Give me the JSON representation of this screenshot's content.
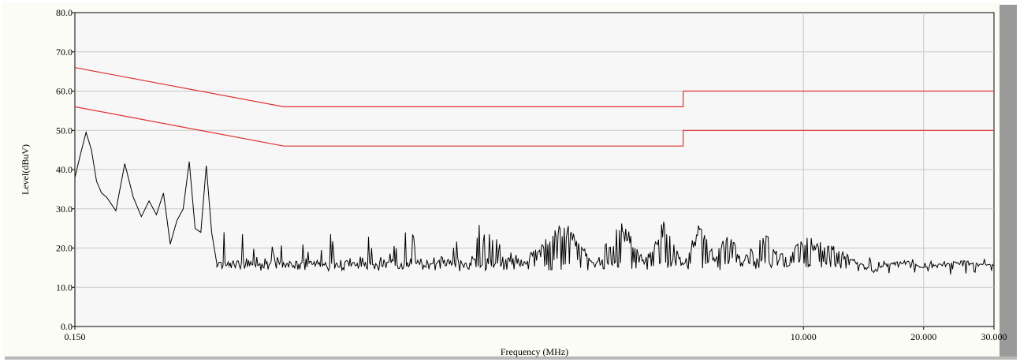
{
  "chart_data": {
    "type": "line",
    "title": "",
    "xlabel": "Frequency (MHz)",
    "ylabel": "Level(dBuV)",
    "xscale": "log",
    "xlim": [
      0.15,
      30
    ],
    "ylim": [
      0,
      80
    ],
    "x_ticks": [
      {
        "value": 0.15,
        "label": "0.150"
      },
      {
        "value": 10,
        "label": "10.000"
      },
      {
        "value": 20,
        "label": "20.000"
      },
      {
        "value": 30,
        "label": "30.000"
      }
    ],
    "y_ticks": [
      {
        "value": 0,
        "label": "0.0"
      },
      {
        "value": 10,
        "label": "10.0"
      },
      {
        "value": 20,
        "label": "20.0"
      },
      {
        "value": 30,
        "label": "30.0"
      },
      {
        "value": 40,
        "label": "40.0"
      },
      {
        "value": 50,
        "label": "50.0"
      },
      {
        "value": 60,
        "label": "60.0"
      },
      {
        "value": 70,
        "label": "70.0"
      },
      {
        "value": 80,
        "label": "80.0"
      }
    ],
    "grid": {
      "horizontal": true,
      "vertical": true
    },
    "colors": {
      "limit_lines": "#e03030",
      "trace": "#000000",
      "grid": "#c8c8c8",
      "background": "#f7f7f7",
      "frame_shadow": "#9a9a9a"
    },
    "series": [
      {
        "role": "limit-upper",
        "x": [
          0.15,
          0.5,
          5,
          5,
          30
        ],
        "y": [
          66,
          56,
          56,
          60,
          60
        ]
      },
      {
        "role": "limit-lower",
        "x": [
          0.15,
          0.5,
          5,
          5,
          30
        ],
        "y": [
          56,
          46,
          46,
          50,
          50
        ]
      },
      {
        "role": "measurement",
        "x": [
          0.15,
          0.155,
          0.16,
          0.165,
          0.17,
          0.175,
          0.18,
          0.19,
          0.2,
          0.21,
          0.22,
          0.23,
          0.24,
          0.25,
          0.26,
          0.27,
          0.28,
          0.29,
          0.3,
          0.31,
          0.32,
          0.33,
          0.34,
          0.35,
          0.36,
          0.37,
          0.38,
          0.39,
          0.4,
          0.41,
          0.42,
          0.44,
          0.46,
          0.48,
          0.5,
          0.52,
          0.55,
          0.6,
          0.65,
          0.7,
          0.8,
          0.9,
          1.0,
          1.2,
          1.5,
          2.0,
          2.5,
          3.0,
          3.5,
          4.0,
          4.5,
          5.0,
          5.5,
          6.0,
          6.5,
          7.0,
          8.0,
          9.0,
          10.0,
          11.0,
          12.0,
          13.0,
          14.0,
          15.0,
          16.0,
          18.0,
          20.0,
          22.0,
          25.0,
          28.0,
          30.0
        ],
        "y": [
          38,
          44,
          49.5,
          45,
          37,
          34,
          33,
          29.5,
          41.5,
          33,
          28,
          32,
          28.5,
          34,
          21,
          27,
          30,
          42,
          25,
          24,
          41,
          24,
          16,
          18,
          32,
          14,
          16,
          31,
          14,
          15,
          22,
          14,
          26,
          14,
          25,
          15,
          24,
          16,
          25,
          15,
          26,
          16,
          27,
          17,
          27,
          17,
          28,
          16,
          28,
          17,
          28,
          16,
          27,
          18,
          25,
          17,
          24,
          18,
          23,
          22,
          21,
          18,
          16,
          14,
          16,
          17,
          15,
          16,
          17,
          16,
          16
        ]
      }
    ]
  }
}
